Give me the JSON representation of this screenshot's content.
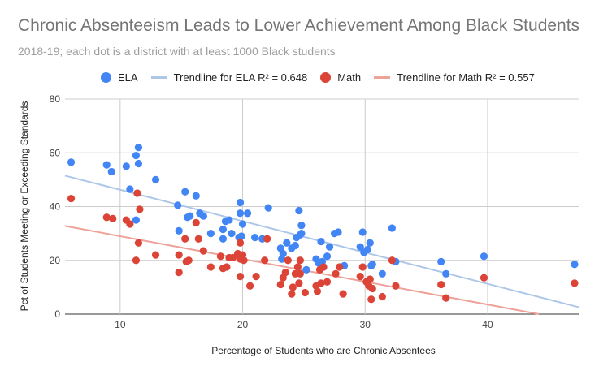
{
  "chart_data": {
    "type": "scatter",
    "title": "Chronic Absenteeism Leads to Lower Achievement Among Black Students",
    "subtitle": "2018-19; each dot is a district with at least 1000 Black students",
    "xlabel": "Percentage of Students who are Chronic Absentees",
    "ylabel": "Pct of Students Meeting or Exceeding Standards",
    "xlim": [
      5.5,
      47.5
    ],
    "ylim": [
      0,
      80
    ],
    "xticks": [
      10,
      20,
      30,
      40
    ],
    "yticks": [
      0,
      20,
      40,
      60,
      80
    ],
    "grid": true,
    "legend_position": "top",
    "series": [
      {
        "name": "ELA",
        "color": "#4285f4",
        "points": [
          [
            6,
            56.5
          ],
          [
            8.9,
            55.5
          ],
          [
            9.3,
            53
          ],
          [
            10.5,
            55
          ],
          [
            10.8,
            46.5
          ],
          [
            11.3,
            59
          ],
          [
            11.5,
            62
          ],
          [
            11.5,
            56
          ],
          [
            11.3,
            35
          ],
          [
            12.9,
            50
          ],
          [
            14.7,
            40.5
          ],
          [
            15.3,
            45.5
          ],
          [
            15.5,
            36
          ],
          [
            14.8,
            31
          ],
          [
            15.7,
            36.5
          ],
          [
            16.2,
            44
          ],
          [
            16.5,
            37.5
          ],
          [
            16.8,
            36.5
          ],
          [
            17.4,
            30
          ],
          [
            18.4,
            31.5
          ],
          [
            18.6,
            34.5
          ],
          [
            18.9,
            35
          ],
          [
            19.1,
            30
          ],
          [
            18.4,
            28
          ],
          [
            19.8,
            41.5
          ],
          [
            19.8,
            37.5
          ],
          [
            20.4,
            37.5
          ],
          [
            20,
            33.5
          ],
          [
            19.9,
            29
          ],
          [
            19.7,
            28.5
          ],
          [
            21,
            28.5
          ],
          [
            21.6,
            28
          ],
          [
            22.1,
            39.5
          ],
          [
            23.1,
            24.5
          ],
          [
            23.3,
            22.5
          ],
          [
            23.2,
            20.5
          ],
          [
            23.6,
            26.5
          ],
          [
            24,
            24.5
          ],
          [
            24.3,
            25.5
          ],
          [
            24.4,
            28.5
          ],
          [
            24.7,
            29.5
          ],
          [
            24.6,
            38.5
          ],
          [
            24.8,
            33
          ],
          [
            24.8,
            30
          ],
          [
            25.2,
            16.5
          ],
          [
            26,
            20.5
          ],
          [
            26.2,
            19
          ],
          [
            26.4,
            27
          ],
          [
            26.5,
            19.5
          ],
          [
            26.6,
            17.5
          ],
          [
            26.9,
            21.5
          ],
          [
            27.1,
            25
          ],
          [
            27.5,
            30
          ],
          [
            27.8,
            30.5
          ],
          [
            28.3,
            18
          ],
          [
            29.6,
            25
          ],
          [
            29.8,
            30.5
          ],
          [
            29.9,
            23
          ],
          [
            30.2,
            24
          ],
          [
            30.4,
            26.5
          ],
          [
            30.5,
            18
          ],
          [
            30.6,
            18.5
          ],
          [
            31.4,
            15
          ],
          [
            32.2,
            32
          ],
          [
            32.5,
            19.5
          ],
          [
            36.2,
            19.5
          ],
          [
            36.6,
            15
          ],
          [
            39.7,
            21.5
          ],
          [
            47.1,
            18.5
          ]
        ]
      },
      {
        "name": "Math",
        "color": "#db4437",
        "points": [
          [
            6,
            43
          ],
          [
            8.9,
            36
          ],
          [
            9.4,
            35.5
          ],
          [
            10.5,
            35
          ],
          [
            10.8,
            33.5
          ],
          [
            11.4,
            45
          ],
          [
            11.6,
            39
          ],
          [
            11.5,
            26.5
          ],
          [
            11.3,
            20
          ],
          [
            12.9,
            22
          ],
          [
            14.8,
            22
          ],
          [
            14.8,
            15.5
          ],
          [
            15.3,
            28
          ],
          [
            15.4,
            19.5
          ],
          [
            15.6,
            20
          ],
          [
            16.2,
            34
          ],
          [
            16.4,
            28
          ],
          [
            16.8,
            23.5
          ],
          [
            17.4,
            17.5
          ],
          [
            18.2,
            21.5
          ],
          [
            18.4,
            17
          ],
          [
            18.7,
            17.5
          ],
          [
            18.9,
            21
          ],
          [
            19.2,
            21
          ],
          [
            19.6,
            22.5
          ],
          [
            19.8,
            20.5
          ],
          [
            20,
            22
          ],
          [
            20.1,
            20
          ],
          [
            19.8,
            14
          ],
          [
            19.8,
            26.5
          ],
          [
            20.6,
            10.5
          ],
          [
            21.1,
            14
          ],
          [
            21.8,
            20
          ],
          [
            22,
            28
          ],
          [
            23.1,
            11
          ],
          [
            23.3,
            13.5
          ],
          [
            23.5,
            15.5
          ],
          [
            23.7,
            20
          ],
          [
            24,
            7.5
          ],
          [
            24.1,
            10
          ],
          [
            24.3,
            15
          ],
          [
            24.5,
            17.5
          ],
          [
            24.6,
            11.5
          ],
          [
            24.7,
            20
          ],
          [
            24.7,
            15
          ],
          [
            25.1,
            8
          ],
          [
            26,
            10.5
          ],
          [
            26.1,
            8.5
          ],
          [
            26.3,
            16.5
          ],
          [
            26.4,
            11.5
          ],
          [
            26.6,
            17.5
          ],
          [
            26.9,
            12
          ],
          [
            27.6,
            15
          ],
          [
            27.9,
            17.5
          ],
          [
            28.2,
            7.5
          ],
          [
            29.6,
            14
          ],
          [
            29.8,
            17.5
          ],
          [
            30.1,
            12
          ],
          [
            30.3,
            10.5
          ],
          [
            30.4,
            13
          ],
          [
            30.5,
            5.5
          ],
          [
            30.6,
            9.5
          ],
          [
            31.4,
            6.5
          ],
          [
            32.2,
            20
          ],
          [
            32.5,
            10.5
          ],
          [
            36.2,
            11
          ],
          [
            36.6,
            6
          ],
          [
            39.7,
            13.5
          ],
          [
            47.1,
            11.5
          ]
        ]
      }
    ],
    "trendlines": [
      {
        "name": "Trendline for ELA R² = 0.648",
        "color": "#aec7e8",
        "from": [
          5.5,
          51.5
        ],
        "to": [
          47.5,
          2.5
        ]
      },
      {
        "name": "Trendline for Math R² = 0.557",
        "color": "#eea29a",
        "from": [
          5.5,
          32.8
        ],
        "to": [
          44.2,
          0
        ]
      }
    ]
  }
}
